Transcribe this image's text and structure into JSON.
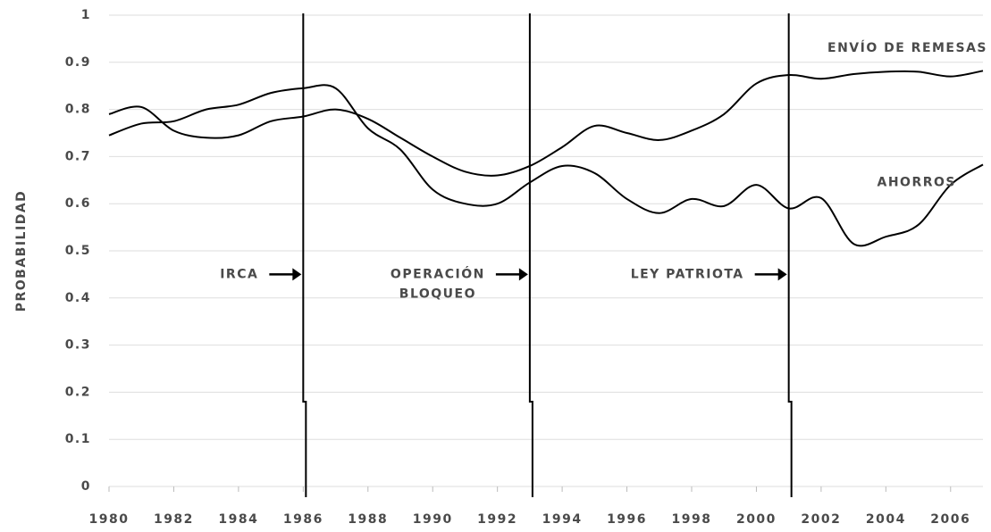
{
  "chart_data": {
    "type": "line",
    "ylabel": "PROBABILIDAD",
    "x": [
      1980,
      1981,
      1982,
      1983,
      1984,
      1985,
      1986,
      1987,
      1988,
      1989,
      1990,
      1991,
      1992,
      1993,
      1994,
      1995,
      1996,
      1997,
      1998,
      1999,
      2000,
      2001,
      2002,
      2003,
      2004,
      2005,
      2006,
      2007
    ],
    "series": [
      {
        "name": "ENVÍO DE REMESAS",
        "color": "#000000",
        "values": [
          0.79,
          0.805,
          0.755,
          0.74,
          0.745,
          0.775,
          0.785,
          0.8,
          0.78,
          0.74,
          0.7,
          0.668,
          0.66,
          0.68,
          0.72,
          0.765,
          0.75,
          0.735,
          0.755,
          0.79,
          0.855,
          0.873,
          0.865,
          0.875,
          0.88,
          0.88,
          0.87,
          0.882
        ]
      },
      {
        "name": "AHORROS",
        "color": "#000000",
        "values": [
          0.745,
          0.77,
          0.775,
          0.8,
          0.81,
          0.835,
          0.845,
          0.845,
          0.76,
          0.715,
          0.63,
          0.6,
          0.6,
          0.645,
          0.68,
          0.665,
          0.61,
          0.58,
          0.61,
          0.595,
          0.64,
          0.59,
          0.612,
          0.515,
          0.53,
          0.555,
          0.64,
          0.683
        ]
      }
    ],
    "events": [
      {
        "x": 1986,
        "label": [
          "IRCA"
        ]
      },
      {
        "x": 1993,
        "label": [
          "OPERACIÓN",
          "BLOQUEO"
        ]
      },
      {
        "x": 2001,
        "label": [
          "LEY PATRIOTA"
        ]
      }
    ],
    "xlim": [
      1980,
      2007
    ],
    "ylim": [
      0,
      1
    ],
    "xticks": [
      1980,
      1982,
      1984,
      1986,
      1988,
      1990,
      1992,
      1994,
      1996,
      1998,
      2000,
      2002,
      2004,
      2006
    ],
    "yticks": [
      0,
      0.1,
      0.2,
      0.3,
      0.4,
      0.5,
      0.6,
      0.7,
      0.8,
      0.9,
      1
    ],
    "grid": true
  }
}
